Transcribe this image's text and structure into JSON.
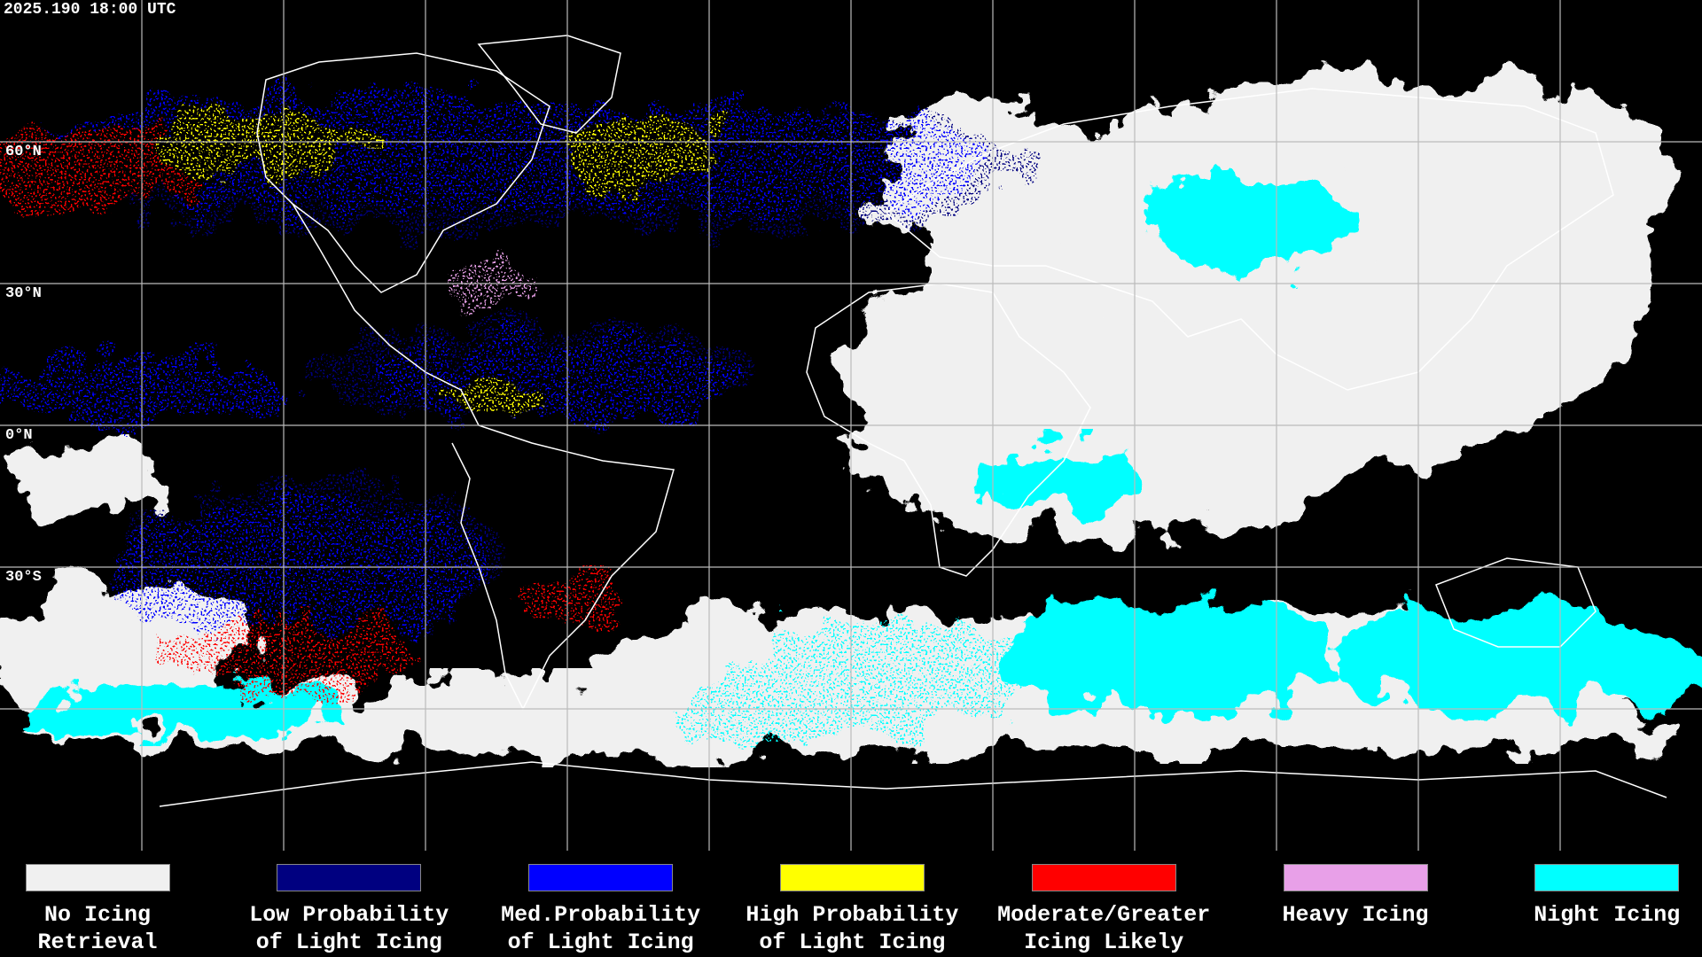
{
  "header": {
    "timestamp": "2025.190 18:00 UTC"
  },
  "map": {
    "latitude_labels": [
      "60°N",
      "30°N",
      "0°N",
      "30°S"
    ]
  },
  "legend": {
    "items": [
      {
        "lines": [
          "No Icing",
          "Retrieval"
        ],
        "color": "#f0f0f0"
      },
      {
        "lines": [
          "Low Probability",
          "of Light Icing"
        ],
        "color": "#000080"
      },
      {
        "lines": [
          "Med.Probability",
          "of Light Icing"
        ],
        "color": "#0000ff"
      },
      {
        "lines": [
          "High Probability",
          "of Light Icing"
        ],
        "color": "#ffff00"
      },
      {
        "lines": [
          "Moderate/Greater",
          "Icing Likely"
        ],
        "color": "#ff0000"
      },
      {
        "lines": [
          "Heavy Icing"
        ],
        "color": "#e8a0e8"
      },
      {
        "lines": [
          "Night Icing"
        ],
        "color": "#00ffff"
      }
    ]
  }
}
